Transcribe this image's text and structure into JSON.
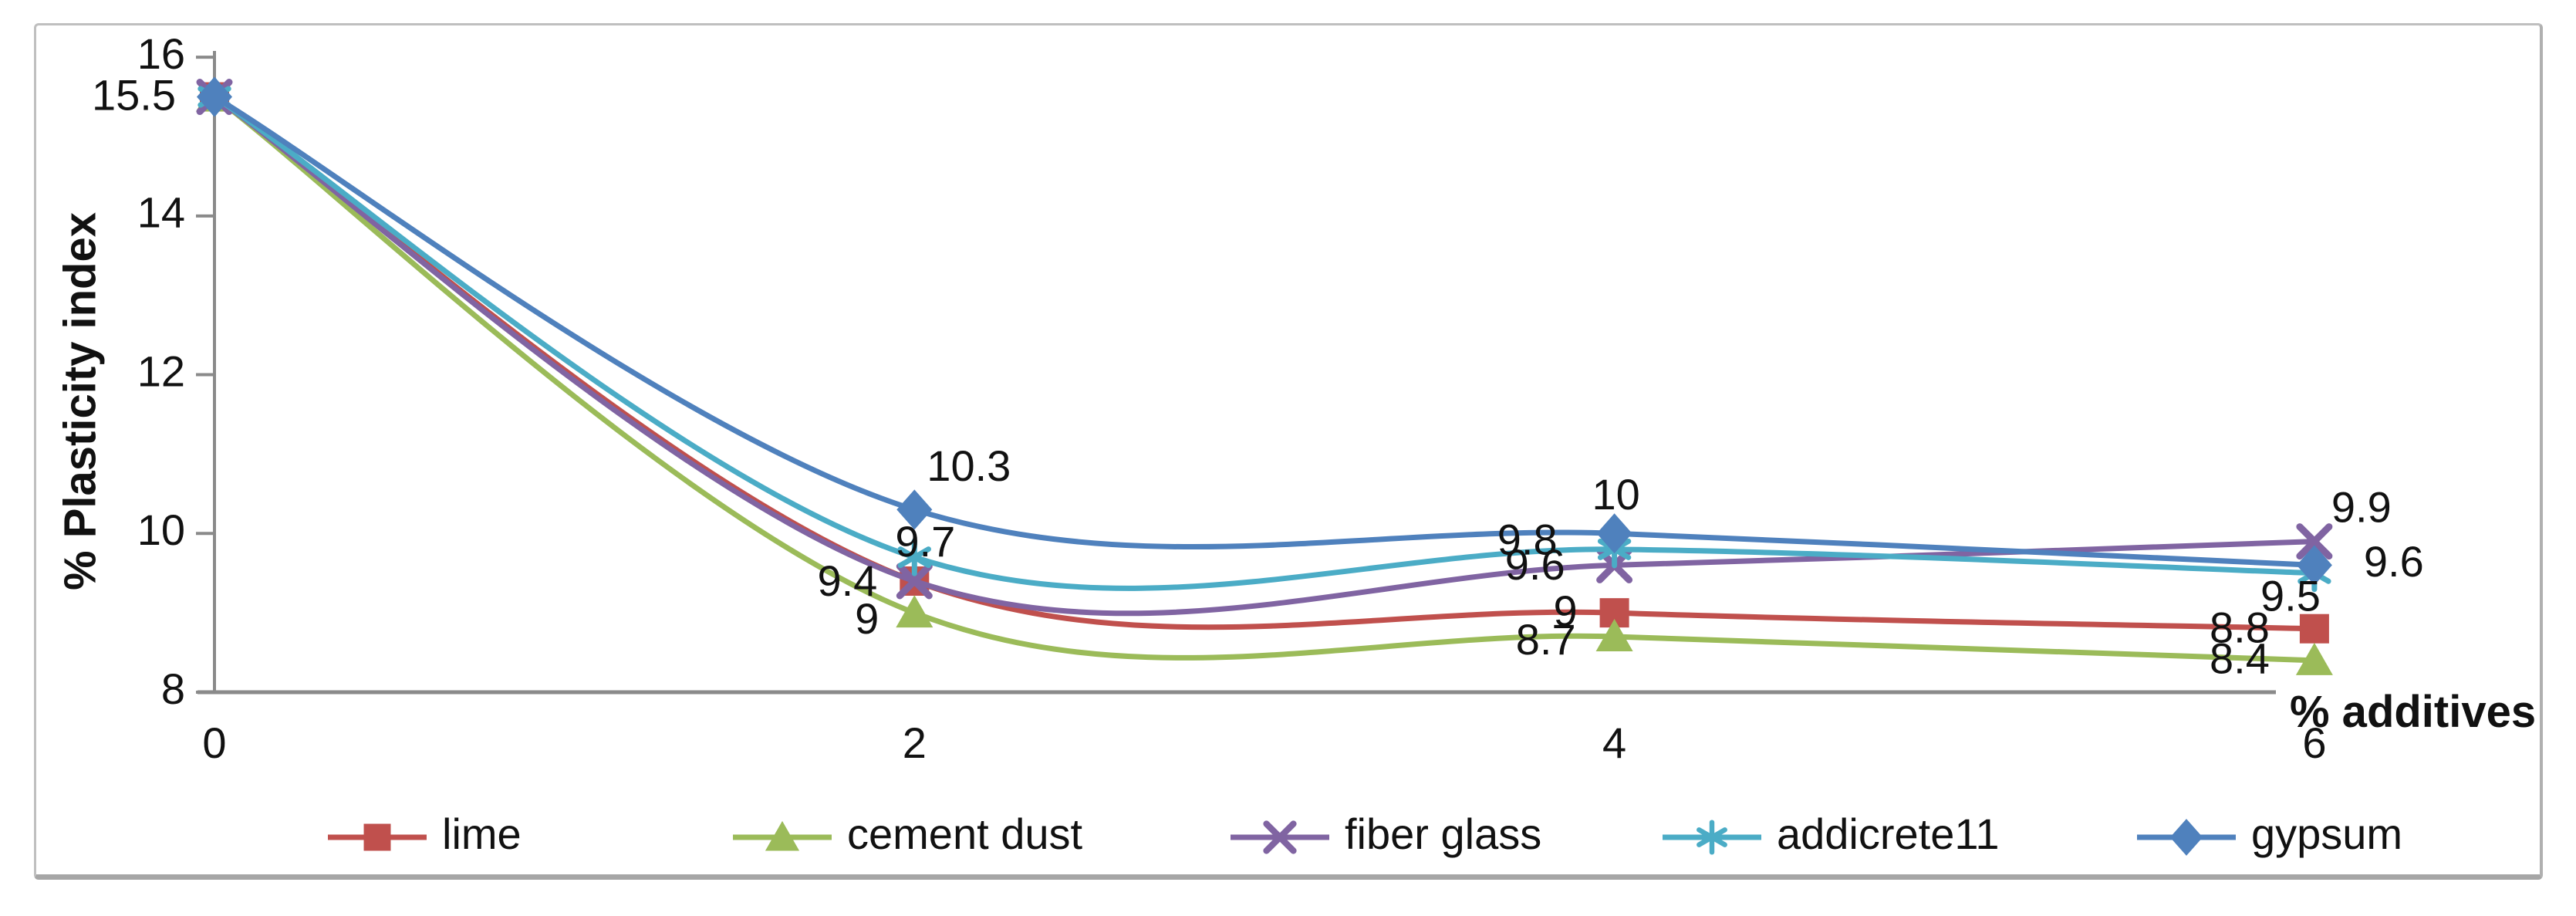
{
  "figure": {
    "background": "#ffffff",
    "border_color": "#bfbfbf",
    "bottom_bar_color": "#a6a6a6",
    "axis_color": "#8a8a8a",
    "text_color": "#111111"
  },
  "chart_data": {
    "type": "line",
    "smoothed": true,
    "title": "",
    "xlabel": "% additives",
    "ylabel": "% Plasticity index",
    "x": [
      0,
      2,
      4,
      6
    ],
    "xtick_labels": [
      "0",
      "2",
      "4",
      "6"
    ],
    "ylim": [
      8,
      16
    ],
    "yticks": [
      8,
      10,
      12,
      14,
      16
    ],
    "ytick_labels": [
      "8",
      "10",
      "12",
      "14",
      "16"
    ],
    "grid": false,
    "legend_position": "bottom",
    "start_point_label": "15.5",
    "series": [
      {
        "name": "lime",
        "color": "#C0504D",
        "marker": "square",
        "values": [
          15.5,
          9.4,
          9.0,
          8.8
        ],
        "labels": [
          null,
          "9.4",
          "9",
          "8.8"
        ]
      },
      {
        "name": "cement dust",
        "color": "#9BBB59",
        "marker": "triangle",
        "values": [
          15.5,
          9.0,
          8.7,
          8.4
        ],
        "labels": [
          null,
          "9",
          "8.7",
          "8.4"
        ]
      },
      {
        "name": "fiber glass",
        "color": "#8064A2",
        "marker": "x",
        "values": [
          15.5,
          9.4,
          9.6,
          9.9
        ],
        "labels": [
          null,
          null,
          "9.6",
          "9.9"
        ]
      },
      {
        "name": "addicrete11",
        "color": "#4BACC6",
        "marker": "asterisk",
        "values": [
          15.5,
          9.7,
          9.8,
          9.5
        ],
        "labels": [
          null,
          "9.7",
          "9.8",
          "9.5"
        ]
      },
      {
        "name": "gypsum",
        "color": "#4F81BD",
        "marker": "diamond",
        "values": [
          15.5,
          10.3,
          10.0,
          9.6
        ],
        "labels": [
          null,
          "10.3",
          "10",
          "9.6"
        ]
      }
    ]
  }
}
